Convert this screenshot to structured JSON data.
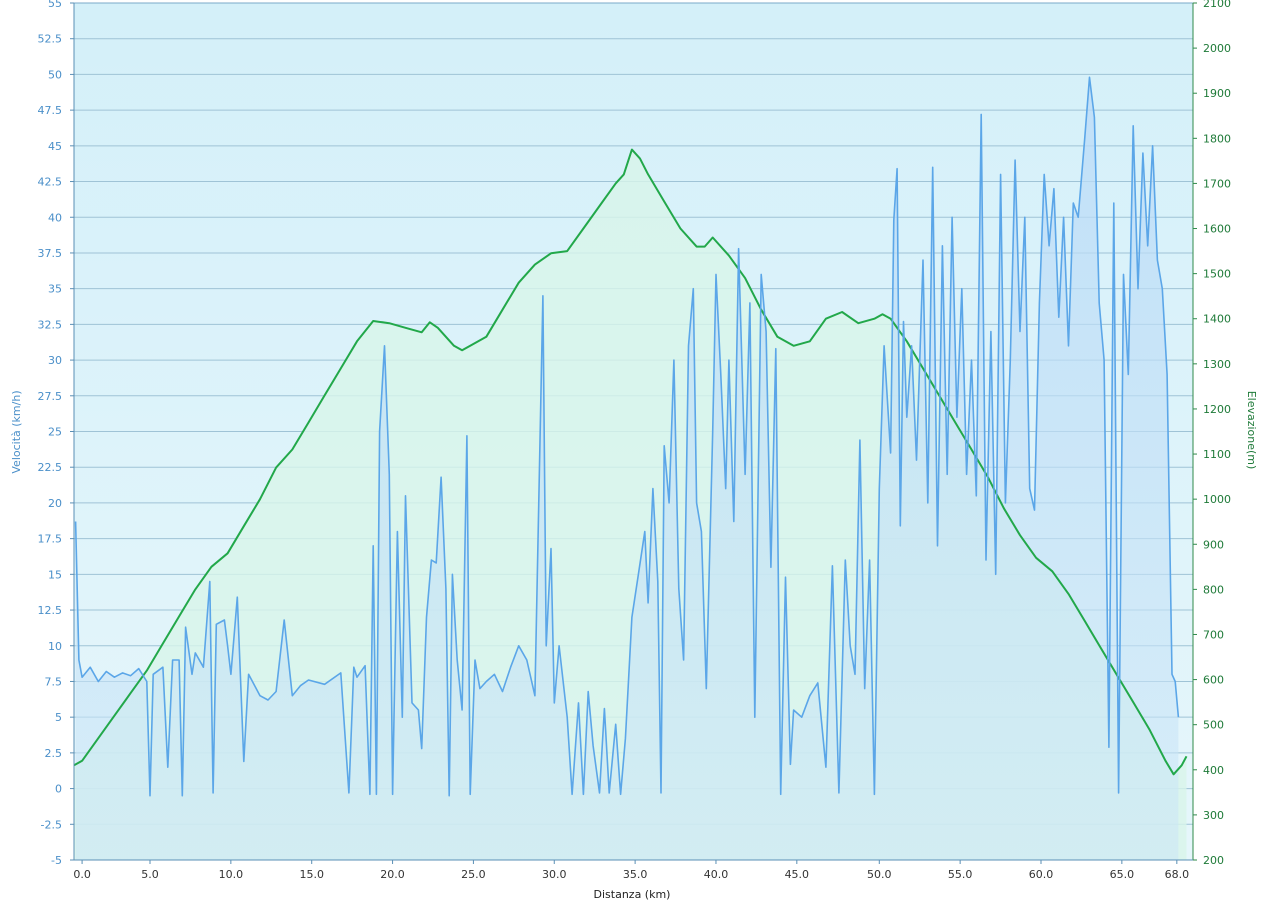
{
  "chart_data": {
    "type": "line",
    "xlabel": "Distanza  (km)",
    "ylabel_left": "Velocità (km/h)",
    "ylabel_right": "Elevazione(m)",
    "xlim": [
      -0.5,
      68.7
    ],
    "ylim_left": [
      -5,
      55
    ],
    "ylim_right": [
      200,
      2100
    ],
    "x_ticks": [
      {
        "v": 0,
        "label": "0.0"
      },
      {
        "v": 4.2,
        "label": "5.0"
      },
      {
        "v": 9.2,
        "label": "10.0"
      },
      {
        "v": 14.2,
        "label": "15.0"
      },
      {
        "v": 19.2,
        "label": "20.0"
      },
      {
        "v": 24.2,
        "label": "25.0"
      },
      {
        "v": 29.2,
        "label": "30.0"
      },
      {
        "v": 34.2,
        "label": "35.0"
      },
      {
        "v": 39.2,
        "label": "40.0"
      },
      {
        "v": 44.2,
        "label": "45.0"
      },
      {
        "v": 49.3,
        "label": "50.0"
      },
      {
        "v": 54.3,
        "label": "55.0"
      },
      {
        "v": 59.3,
        "label": "60.0"
      },
      {
        "v": 64.3,
        "label": "65.0"
      },
      {
        "v": 67.7,
        "label": "68.0"
      }
    ],
    "y_ticks_left": [
      "-5",
      "-2.5",
      "0",
      "2.5",
      "5",
      "7.5",
      "10",
      "12.5",
      "15",
      "17.5",
      "20",
      "22.5",
      "25",
      "27.5",
      "30",
      "32.5",
      "35",
      "37.5",
      "40",
      "42.5",
      "45",
      "47.5",
      "50",
      "52.5",
      "55"
    ],
    "y_ticks_right": [
      "200",
      "300",
      "400",
      "500",
      "600",
      "700",
      "800",
      "900",
      "1000",
      "1100",
      "1200",
      "1300",
      "1400",
      "1500",
      "1600",
      "1700",
      "1800",
      "1900",
      "2000",
      "2100"
    ],
    "grid": true,
    "series": [
      {
        "name": "",
        "axis": "right",
        "color": "#22a84a",
        "points": [
          [
            -0.5,
            410
          ],
          [
            0,
            420
          ],
          [
            1,
            470
          ],
          [
            2,
            520
          ],
          [
            3,
            570
          ],
          [
            4,
            620
          ],
          [
            5,
            680
          ],
          [
            6,
            740
          ],
          [
            7,
            800
          ],
          [
            8,
            850
          ],
          [
            9,
            880
          ],
          [
            10,
            940
          ],
          [
            11,
            1000
          ],
          [
            12,
            1070
          ],
          [
            13,
            1110
          ],
          [
            14,
            1170
          ],
          [
            15,
            1230
          ],
          [
            16,
            1290
          ],
          [
            17,
            1350
          ],
          [
            18,
            1395
          ],
          [
            19,
            1390
          ],
          [
            20,
            1380
          ],
          [
            21,
            1370
          ],
          [
            21.5,
            1392
          ],
          [
            22,
            1380
          ],
          [
            23,
            1340
          ],
          [
            23.5,
            1330
          ],
          [
            24,
            1340
          ],
          [
            25,
            1360
          ],
          [
            26,
            1420
          ],
          [
            27,
            1480
          ],
          [
            28,
            1520
          ],
          [
            29,
            1545
          ],
          [
            30,
            1550
          ],
          [
            31,
            1600
          ],
          [
            32,
            1650
          ],
          [
            33,
            1700
          ],
          [
            33.5,
            1720
          ],
          [
            34,
            1775
          ],
          [
            34.5,
            1755
          ],
          [
            35,
            1720
          ],
          [
            36,
            1660
          ],
          [
            37,
            1600
          ],
          [
            38,
            1560
          ],
          [
            38.5,
            1560
          ],
          [
            39,
            1580
          ],
          [
            40,
            1540
          ],
          [
            41,
            1490
          ],
          [
            42,
            1420
          ],
          [
            43,
            1360
          ],
          [
            44,
            1340
          ],
          [
            45,
            1350
          ],
          [
            46,
            1400
          ],
          [
            47,
            1415
          ],
          [
            48,
            1390
          ],
          [
            49,
            1400
          ],
          [
            49.5,
            1410
          ],
          [
            50,
            1400
          ],
          [
            51,
            1350
          ],
          [
            52,
            1290
          ],
          [
            53,
            1230
          ],
          [
            54,
            1170
          ],
          [
            55,
            1110
          ],
          [
            56,
            1050
          ],
          [
            57,
            980
          ],
          [
            58,
            920
          ],
          [
            59,
            870
          ],
          [
            60,
            840
          ],
          [
            61,
            790
          ],
          [
            62,
            730
          ],
          [
            63,
            670
          ],
          [
            64,
            610
          ],
          [
            65,
            550
          ],
          [
            66,
            490
          ],
          [
            67,
            420
          ],
          [
            67.5,
            390
          ],
          [
            68,
            410
          ],
          [
            68.3,
            430
          ]
        ]
      },
      {
        "name": "",
        "axis": "left",
        "color": "#5ba6e8",
        "points": [
          [
            -0.4,
            18.7
          ],
          [
            -0.2,
            9
          ],
          [
            0,
            7.8
          ],
          [
            0.5,
            8.5
          ],
          [
            1,
            7.5
          ],
          [
            1.5,
            8.2
          ],
          [
            2,
            7.8
          ],
          [
            2.5,
            8.1
          ],
          [
            3,
            7.9
          ],
          [
            3.5,
            8.4
          ],
          [
            4,
            7.5
          ],
          [
            4.2,
            -0.5
          ],
          [
            4.4,
            8
          ],
          [
            5,
            8.5
          ],
          [
            5.3,
            1.5
          ],
          [
            5.6,
            9
          ],
          [
            6,
            9
          ],
          [
            6.2,
            -0.5
          ],
          [
            6.4,
            11.3
          ],
          [
            6.8,
            8
          ],
          [
            7,
            9.5
          ],
          [
            7.5,
            8.5
          ],
          [
            7.9,
            14.5
          ],
          [
            8.1,
            -0.3
          ],
          [
            8.3,
            11.5
          ],
          [
            8.8,
            11.8
          ],
          [
            9,
            10
          ],
          [
            9.2,
            8
          ],
          [
            9.6,
            13.4
          ],
          [
            10,
            1.9
          ],
          [
            10.3,
            8
          ],
          [
            11,
            6.5
          ],
          [
            11.5,
            6.2
          ],
          [
            12,
            6.8
          ],
          [
            12.5,
            11.8
          ],
          [
            13,
            6.5
          ],
          [
            13.5,
            7.2
          ],
          [
            14,
            7.6
          ],
          [
            15,
            7.3
          ],
          [
            16,
            8.1
          ],
          [
            16.5,
            -0.3
          ],
          [
            16.8,
            8.5
          ],
          [
            17,
            7.8
          ],
          [
            17.5,
            8.6
          ],
          [
            17.8,
            -0.4
          ],
          [
            18,
            17
          ],
          [
            18.2,
            -0.4
          ],
          [
            18.4,
            25
          ],
          [
            18.7,
            31
          ],
          [
            19,
            22
          ],
          [
            19.2,
            -0.4
          ],
          [
            19.5,
            18
          ],
          [
            19.8,
            5
          ],
          [
            20,
            20.5
          ],
          [
            20.4,
            6
          ],
          [
            20.8,
            5.5
          ],
          [
            21,
            2.8
          ],
          [
            21.3,
            12
          ],
          [
            21.6,
            16
          ],
          [
            21.9,
            15.8
          ],
          [
            22.2,
            21.8
          ],
          [
            22.5,
            14
          ],
          [
            22.7,
            -0.5
          ],
          [
            22.9,
            15
          ],
          [
            23.2,
            9
          ],
          [
            23.5,
            5.5
          ],
          [
            23.8,
            24.7
          ],
          [
            24,
            -0.4
          ],
          [
            24.3,
            9
          ],
          [
            24.6,
            7
          ],
          [
            25,
            7.5
          ],
          [
            25.5,
            8
          ],
          [
            26,
            6.8
          ],
          [
            26.5,
            8.5
          ],
          [
            27,
            10
          ],
          [
            27.5,
            9
          ],
          [
            28,
            6.5
          ],
          [
            28.5,
            34.5
          ],
          [
            28.7,
            10
          ],
          [
            29,
            16.8
          ],
          [
            29.2,
            6
          ],
          [
            29.5,
            10
          ],
          [
            30,
            5
          ],
          [
            30.3,
            -0.4
          ],
          [
            30.7,
            6
          ],
          [
            31,
            -0.4
          ],
          [
            31.3,
            6.8
          ],
          [
            31.6,
            3
          ],
          [
            32,
            -0.3
          ],
          [
            32.3,
            5.6
          ],
          [
            32.6,
            -0.3
          ],
          [
            33,
            4.5
          ],
          [
            33.3,
            -0.4
          ],
          [
            33.6,
            3.5
          ],
          [
            34,
            12
          ],
          [
            34.4,
            15
          ],
          [
            34.8,
            18
          ],
          [
            35,
            13
          ],
          [
            35.3,
            21
          ],
          [
            35.6,
            14.5
          ],
          [
            35.8,
            -0.3
          ],
          [
            36,
            24
          ],
          [
            36.3,
            20
          ],
          [
            36.6,
            30
          ],
          [
            36.9,
            14
          ],
          [
            37.2,
            9
          ],
          [
            37.5,
            31
          ],
          [
            37.8,
            35
          ],
          [
            38,
            20
          ],
          [
            38.3,
            18
          ],
          [
            38.6,
            7
          ],
          [
            39,
            25
          ],
          [
            39.2,
            36
          ],
          [
            39.5,
            29
          ],
          [
            39.8,
            21
          ],
          [
            40,
            30
          ],
          [
            40.3,
            18.7
          ],
          [
            40.6,
            37.8
          ],
          [
            41,
            22
          ],
          [
            41.3,
            34
          ],
          [
            41.6,
            5
          ],
          [
            42,
            36
          ],
          [
            42.3,
            32
          ],
          [
            42.6,
            15.5
          ],
          [
            42.9,
            30.8
          ],
          [
            43.2,
            -0.4
          ],
          [
            43.5,
            14.8
          ],
          [
            43.8,
            1.7
          ],
          [
            44,
            5.5
          ],
          [
            44.5,
            5
          ],
          [
            45,
            6.5
          ],
          [
            45.5,
            7.4
          ],
          [
            46,
            1.5
          ],
          [
            46.4,
            15.6
          ],
          [
            46.8,
            -0.3
          ],
          [
            47.2,
            16
          ],
          [
            47.5,
            10
          ],
          [
            47.8,
            8
          ],
          [
            48.1,
            24.4
          ],
          [
            48.4,
            7
          ],
          [
            48.7,
            16
          ],
          [
            49,
            -0.4
          ],
          [
            49.3,
            21
          ],
          [
            49.6,
            31
          ],
          [
            50,
            23.5
          ],
          [
            50.2,
            39.8
          ],
          [
            50.4,
            43.4
          ],
          [
            50.6,
            18.4
          ],
          [
            50.8,
            32.7
          ],
          [
            51,
            26
          ],
          [
            51.3,
            31
          ],
          [
            51.6,
            23
          ],
          [
            52,
            37
          ],
          [
            52.3,
            20
          ],
          [
            52.6,
            43.5
          ],
          [
            52.9,
            17
          ],
          [
            53.2,
            38
          ],
          [
            53.5,
            22
          ],
          [
            53.8,
            40
          ],
          [
            54.1,
            26
          ],
          [
            54.4,
            35
          ],
          [
            54.7,
            22
          ],
          [
            55,
            30
          ],
          [
            55.3,
            20.5
          ],
          [
            55.6,
            47.2
          ],
          [
            55.9,
            16
          ],
          [
            56.2,
            32
          ],
          [
            56.5,
            15
          ],
          [
            56.8,
            43
          ],
          [
            57.1,
            20
          ],
          [
            57.4,
            30
          ],
          [
            57.7,
            44
          ],
          [
            58,
            32
          ],
          [
            58.3,
            40
          ],
          [
            58.6,
            21
          ],
          [
            58.9,
            19.5
          ],
          [
            59.2,
            34
          ],
          [
            59.5,
            43
          ],
          [
            59.8,
            38
          ],
          [
            60.1,
            42
          ],
          [
            60.4,
            33
          ],
          [
            60.7,
            40
          ],
          [
            61,
            31
          ],
          [
            61.3,
            41
          ],
          [
            61.6,
            40
          ],
          [
            62,
            45.5
          ],
          [
            62.3,
            49.8
          ],
          [
            62.6,
            47
          ],
          [
            62.9,
            34
          ],
          [
            63.2,
            30
          ],
          [
            63.5,
            2.9
          ],
          [
            63.8,
            41
          ],
          [
            64.1,
            -0.3
          ],
          [
            64.4,
            36
          ],
          [
            64.7,
            29
          ],
          [
            65,
            46.4
          ],
          [
            65.3,
            35
          ],
          [
            65.6,
            44.5
          ],
          [
            65.9,
            38
          ],
          [
            66.2,
            45
          ],
          [
            66.5,
            37
          ],
          [
            66.8,
            35
          ],
          [
            67.1,
            29
          ],
          [
            67.4,
            8
          ],
          [
            67.6,
            7.5
          ],
          [
            67.8,
            5
          ]
        ]
      }
    ]
  }
}
